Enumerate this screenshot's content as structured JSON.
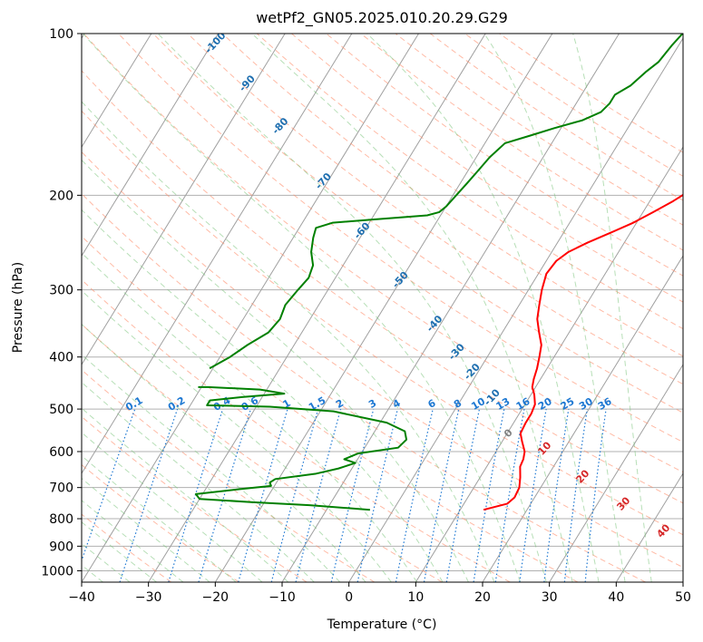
{
  "chart_data": {
    "type": "line",
    "title": "wetPf2_GN05.2025.010.20.29.G29",
    "xlabel": "Temperature (°C)",
    "ylabel": "Pressure (hPa)",
    "xlim": [
      -40,
      50
    ],
    "ylim": [
      1050,
      100
    ],
    "y_scale": "log",
    "x_ticks": [
      -40,
      -30,
      -20,
      -10,
      0,
      10,
      20,
      30,
      40,
      50
    ],
    "y_ticks": [
      100,
      200,
      300,
      400,
      500,
      600,
      700,
      800,
      900,
      1000
    ],
    "grid": true,
    "colors": {
      "temperature": "#ff0000",
      "dewpoint": "#008000",
      "isotherm": "#a0a0a0",
      "dry_adiabat": "#ff8c69",
      "moist_adiabat": "#7cc47c",
      "mixing_ratio": "#1e78d2",
      "moist_label": "#1f6fb0",
      "dry_label": "#d62728"
    },
    "series": [
      {
        "role": "temperature",
        "points": [
          [
            13.5,
            770
          ],
          [
            16.5,
            750
          ],
          [
            17.0,
            730
          ],
          [
            16.8,
            700
          ],
          [
            16.0,
            670
          ],
          [
            15.0,
            640
          ],
          [
            14.8,
            620
          ],
          [
            14.3,
            600
          ],
          [
            13.0,
            575
          ],
          [
            12.0,
            555
          ],
          [
            11.8,
            530
          ],
          [
            11.8,
            510
          ],
          [
            11.5,
            490
          ],
          [
            10.5,
            470
          ],
          [
            9.5,
            455
          ],
          [
            9.0,
            440
          ],
          [
            8.5,
            420
          ],
          [
            7.8,
            400
          ],
          [
            7.0,
            380
          ],
          [
            5.5,
            360
          ],
          [
            4.0,
            340
          ],
          [
            3.0,
            320
          ],
          [
            2.0,
            300
          ],
          [
            1.2,
            280
          ],
          [
            1.5,
            265
          ],
          [
            2.5,
            255
          ],
          [
            4.5,
            245
          ],
          [
            7.0,
            235
          ],
          [
            9.5,
            225
          ],
          [
            11.5,
            215
          ],
          [
            13.5,
            205
          ],
          [
            15.2,
            195
          ],
          [
            16.8,
            185
          ],
          [
            17.9,
            175
          ],
          [
            18.4,
            165
          ],
          [
            18.0,
            155
          ],
          [
            17.3,
            145
          ],
          [
            17.5,
            135
          ],
          [
            18.0,
            125
          ],
          [
            18.5,
            115
          ],
          [
            20.5,
            108
          ],
          [
            23.0,
            103
          ],
          [
            24.5,
            100
          ]
        ]
      },
      {
        "role": "dewpoint",
        "points": [
          [
            -3.5,
            770
          ],
          [
            -13.0,
            755
          ],
          [
            -22.0,
            745
          ],
          [
            -30.0,
            735
          ],
          [
            -31.0,
            720
          ],
          [
            -25.0,
            705
          ],
          [
            -20.5,
            695
          ],
          [
            -21.0,
            685
          ],
          [
            -20.5,
            675
          ],
          [
            -15.0,
            660
          ],
          [
            -12.0,
            645
          ],
          [
            -10.0,
            630
          ],
          [
            -12.0,
            620
          ],
          [
            -10.5,
            605
          ],
          [
            -5.0,
            590
          ],
          [
            -4.5,
            570
          ],
          [
            -5.5,
            550
          ],
          [
            -9.0,
            530
          ],
          [
            -18.0,
            505
          ],
          [
            -28.0,
            495
          ],
          [
            -37.5,
            492
          ],
          [
            -37.5,
            482
          ],
          [
            -33.0,
            475
          ],
          [
            -27.0,
            468
          ],
          [
            -31.0,
            460
          ],
          [
            -39.0,
            455
          ],
          [
            -40.5,
            455
          ]
        ],
        "points_upper": [
          [
            -40.5,
            420
          ],
          [
            -38.5,
            400
          ],
          [
            -37.0,
            380
          ],
          [
            -35.0,
            360
          ],
          [
            -34.5,
            340
          ],
          [
            -35.0,
            320
          ],
          [
            -34.5,
            300
          ],
          [
            -34.0,
            285
          ],
          [
            -34.5,
            270
          ],
          [
            -36.0,
            255
          ],
          [
            -37.0,
            240
          ],
          [
            -37.5,
            230
          ],
          [
            -35.5,
            225
          ],
          [
            -30.0,
            222
          ],
          [
            -22.0,
            218
          ],
          [
            -20.5,
            215
          ],
          [
            -20.0,
            210
          ],
          [
            -19.5,
            200
          ],
          [
            -19.0,
            190
          ],
          [
            -18.5,
            180
          ],
          [
            -18.0,
            170
          ],
          [
            -17.0,
            160
          ],
          [
            -14.0,
            155
          ],
          [
            -11.0,
            150
          ],
          [
            -7.5,
            145
          ],
          [
            -5.5,
            140
          ],
          [
            -5.0,
            135
          ],
          [
            -5.0,
            130
          ],
          [
            -3.5,
            125
          ],
          [
            -2.5,
            118
          ],
          [
            -1.5,
            113
          ],
          [
            -1.0,
            105
          ],
          [
            -0.5,
            100
          ]
        ]
      }
    ],
    "moist_adiabat_labels": [
      "-100",
      "-90",
      "-80",
      "-70",
      "-60",
      "-50",
      "-40",
      "-30",
      "-20",
      "-10",
      "0"
    ],
    "dry_adiabat_labels": [
      "10",
      "20",
      "30",
      "40"
    ],
    "mixing_ratio_labels": [
      "0.1",
      "0.2",
      "0.4",
      "0.6",
      "1",
      "1.5",
      "2",
      "3",
      "4",
      "6",
      "8",
      "10",
      "13",
      "16",
      "20",
      "25",
      "30",
      "36"
    ]
  }
}
